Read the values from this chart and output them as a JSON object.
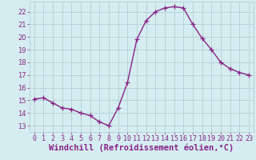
{
  "x": [
    0,
    1,
    2,
    3,
    4,
    5,
    6,
    7,
    8,
    9,
    10,
    11,
    12,
    13,
    14,
    15,
    16,
    17,
    18,
    19,
    20,
    21,
    22,
    23
  ],
  "y": [
    15.1,
    15.2,
    14.8,
    14.4,
    14.3,
    14.0,
    13.8,
    13.3,
    13.0,
    14.4,
    16.4,
    19.8,
    21.3,
    22.0,
    22.3,
    22.4,
    22.3,
    21.0,
    19.9,
    19.0,
    18.0,
    17.5,
    17.2,
    17.0
  ],
  "line_color": "#882288",
  "marker": "+",
  "marker_size": 4,
  "bg_color": "#d5edf0",
  "grid_color": "#b8d4d8",
  "xlabel": "Windchill (Refroidissement éolien,°C)",
  "xlabel_color": "#882288",
  "xlabel_fontsize": 7.5,
  "yticks": [
    13,
    14,
    15,
    16,
    17,
    18,
    19,
    20,
    21,
    22
  ],
  "xlim": [
    -0.5,
    23.5
  ],
  "ylim": [
    12.5,
    22.8
  ],
  "tick_color": "#882288",
  "tick_fontsize": 6.0,
  "linewidth": 1.0
}
